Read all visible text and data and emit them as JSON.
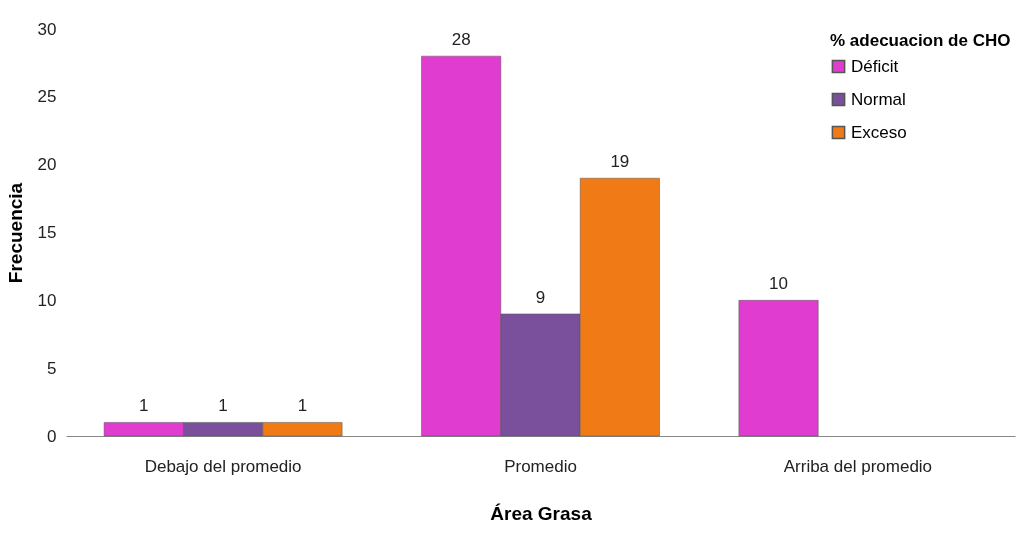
{
  "chart_data": {
    "type": "bar",
    "xlabel": "Área Grasa",
    "ylabel": "Frecuencia",
    "legend_title": "% adecuacion de CHO",
    "categories": [
      "Debajo del promedio",
      "Promedio",
      "Arriba del promedio"
    ],
    "series": [
      {
        "name": "Déficit",
        "color": "#e03ccf",
        "values": [
          1,
          28,
          10
        ]
      },
      {
        "name": "Normal",
        "color": "#7a4f9c",
        "values": [
          1,
          9,
          null
        ]
      },
      {
        "name": "Exceso",
        "color": "#f07a16",
        "values": [
          1,
          19,
          null
        ]
      }
    ],
    "ylim": [
      0,
      30
    ],
    "yticks": [
      0,
      5,
      10,
      15,
      20,
      25,
      30
    ],
    "data_labels": true,
    "legend": "top right"
  }
}
